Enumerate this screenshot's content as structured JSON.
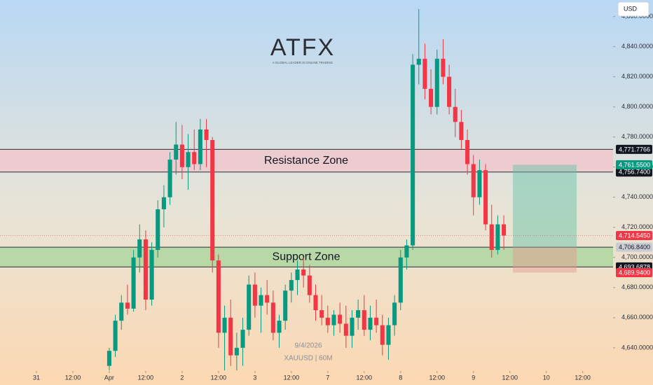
{
  "chart_data": {
    "type": "candlestick",
    "currency": "USD",
    "logo": "ATFX",
    "logo_tagline": "A GLOBAL LEADER IN ONLINE TRADING",
    "watermark_date": "9/4/2026",
    "watermark_symbol": "XAUUSD | 60M",
    "up_color": "#089981",
    "down_color": "#f23645",
    "x": [
      24,
      26,
      28,
      30,
      32,
      34,
      36,
      38,
      40,
      42,
      44,
      46,
      48,
      50,
      52,
      54,
      56,
      58,
      60,
      62,
      64,
      66,
      68,
      70,
      72,
      74,
      76,
      78,
      80,
      82,
      84,
      86,
      88,
      90,
      92,
      94,
      96,
      98,
      100,
      102,
      104,
      106,
      108,
      110,
      112,
      114,
      116,
      118,
      120,
      122,
      124,
      126,
      128,
      130,
      132,
      134,
      136,
      138,
      140,
      142,
      144,
      146,
      148,
      150,
      152,
      154
    ],
    "open": [
      4628,
      4638,
      4658,
      4670,
      4666,
      4700,
      4712,
      4672,
      4705,
      4732,
      4740,
      4765,
      4775,
      4760,
      4770,
      4762,
      4785,
      4778,
      4698,
      4650,
      4660,
      4635,
      4640,
      4652,
      4682,
      4668,
      4675,
      4670,
      4650,
      4658,
      4678,
      4685,
      4692,
      4688,
      4675,
      4665,
      4660,
      4655,
      4662,
      4656,
      4648,
      4660,
      4665,
      4652,
      4660,
      4655,
      4642,
      4655,
      4670,
      4700,
      4708,
      4828,
      4832,
      4812,
      4800,
      4832,
      4820,
      4800,
      4790,
      4778,
      4762,
      4740,
      4758,
      4722,
      4705,
      4722
    ],
    "high": [
      4640,
      4662,
      4675,
      4682,
      4705,
      4722,
      4718,
      4710,
      4738,
      4748,
      4770,
      4790,
      4788,
      4782,
      4785,
      4792,
      4792,
      4780,
      4702,
      4668,
      4672,
      4650,
      4660,
      4688,
      4690,
      4680,
      4685,
      4678,
      4662,
      4682,
      4690,
      4698,
      4700,
      4695,
      4682,
      4675,
      4668,
      4665,
      4670,
      4668,
      4665,
      4672,
      4675,
      4668,
      4672,
      4662,
      4660,
      4675,
      4705,
      4712,
      4835,
      4865,
      4842,
      4825,
      4838,
      4845,
      4828,
      4812,
      4798,
      4785,
      4768,
      4765,
      4762,
      4735,
      4728,
      4728
    ],
    "low": [
      4625,
      4634,
      4652,
      4662,
      4664,
      4690,
      4665,
      4668,
      4700,
      4720,
      4735,
      4755,
      4752,
      4745,
      4758,
      4758,
      4760,
      4690,
      4640,
      4625,
      4628,
      4625,
      4628,
      4648,
      4660,
      4650,
      4662,
      4645,
      4640,
      4652,
      4670,
      4675,
      4680,
      4670,
      4658,
      4655,
      4650,
      4648,
      4650,
      4640,
      4640,
      4652,
      4648,
      4645,
      4650,
      4635,
      4632,
      4648,
      4665,
      4692,
      4705,
      4815,
      4805,
      4795,
      4795,
      4815,
      4795,
      4780,
      4772,
      4755,
      4728,
      4735,
      4718,
      4700,
      4702,
      4705
    ],
    "close": [
      4638,
      4658,
      4670,
      4666,
      4700,
      4712,
      4672,
      4705,
      4732,
      4740,
      4765,
      4775,
      4760,
      4770,
      4762,
      4785,
      4778,
      4698,
      4650,
      4660,
      4635,
      4640,
      4652,
      4682,
      4668,
      4675,
      4670,
      4650,
      4658,
      4678,
      4685,
      4692,
      4688,
      4675,
      4665,
      4660,
      4655,
      4662,
      4656,
      4648,
      4660,
      4665,
      4652,
      4660,
      4655,
      4642,
      4655,
      4670,
      4700,
      4708,
      4828,
      4832,
      4812,
      4800,
      4832,
      4820,
      4800,
      4790,
      4778,
      4762,
      4740,
      4758,
      4722,
      4705,
      4722,
      4714.545
    ],
    "xlim": [
      -12,
      190
    ],
    "xticks": [
      {
        "value": 0,
        "label": "31"
      },
      {
        "value": 12,
        "label": "12:00"
      },
      {
        "value": 24,
        "label": "Apr"
      },
      {
        "value": 36,
        "label": "12:00"
      },
      {
        "value": 48,
        "label": "2"
      },
      {
        "value": 60,
        "label": "12:00"
      },
      {
        "value": 72,
        "label": "3"
      },
      {
        "value": 84,
        "label": "12:00"
      },
      {
        "value": 96,
        "label": "7"
      },
      {
        "value": 108,
        "label": "12:00"
      },
      {
        "value": 120,
        "label": "8"
      },
      {
        "value": 132,
        "label": "12:00"
      },
      {
        "value": 144,
        "label": "9"
      },
      {
        "value": 156,
        "label": "12:00"
      },
      {
        "value": 168,
        "label": "10"
      },
      {
        "value": 180,
        "label": "12:00"
      }
    ],
    "ylim": [
      4624.6,
      4871
    ],
    "yticks": [
      {
        "value": 4640,
        "label": "4,640.0000"
      },
      {
        "value": 4660,
        "label": "4,660.0000"
      },
      {
        "value": 4680,
        "label": "4,680.0000"
      },
      {
        "value": 4700,
        "label": "4,700.0000"
      },
      {
        "value": 4720,
        "label": "4,720.0000"
      },
      {
        "value": 4740,
        "label": "4,740.0000"
      },
      {
        "value": 4760,
        "label": "4,760.0000"
      },
      {
        "value": 4780,
        "label": "4,780.0000"
      },
      {
        "value": 4800,
        "label": "4,800.0000"
      },
      {
        "value": 4820,
        "label": "4,820.0000"
      },
      {
        "value": 4840,
        "label": "4,840.0000"
      },
      {
        "value": 4860,
        "label": "4,860.0000"
      }
    ],
    "zones": [
      {
        "label": "Resistance Zone",
        "color": "#f2c4cc",
        "top": {
          "value": 4771.7766,
          "label": "4,771.7766",
          "bg": "#131722",
          "fg": "#ffffff"
        },
        "bottom": {
          "value": 4756.74,
          "label": "4,756.7400",
          "bg": "#131722",
          "fg": "#ffffff"
        }
      },
      {
        "label": "Support Zone",
        "color": "#a6d49a",
        "top": {
          "value": 4706.84,
          "label": "4,706.8400",
          "bg": "#c9ccd3",
          "fg": "#131722"
        },
        "bottom": {
          "value": 4693.6878,
          "label": "4,693.6878",
          "bg": "#131722",
          "fg": "#ffffff"
        }
      }
    ],
    "last_price": {
      "value": 4714.545,
      "label": "4,714.5450",
      "bg": "#f23645",
      "fg": "#ffffff"
    },
    "position": {
      "x": [
        157,
        178
      ],
      "entry": 4706.84,
      "target": {
        "value": 4761.55,
        "label": "4,761.5500",
        "bg": "#089981",
        "fg": "#ffffff"
      },
      "stop": {
        "value": 4689.94,
        "label": "4,689.9400",
        "bg": "#f23645",
        "fg": "#ffffff"
      }
    }
  }
}
